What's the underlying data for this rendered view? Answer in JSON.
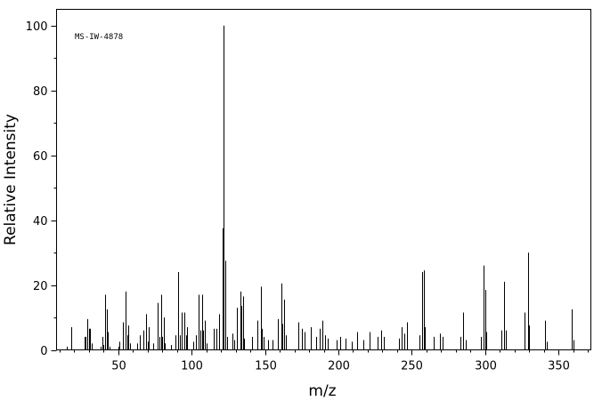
{
  "chart_data": {
    "type": "bar",
    "title": "",
    "annotation": "MS-IW-4878",
    "xlabel": "m/z",
    "ylabel": "Relative Intensity",
    "xlim": [
      8,
      372
    ],
    "ylim": [
      0,
      105
    ],
    "x_ticks": [
      50,
      100,
      150,
      200,
      250,
      300,
      350
    ],
    "y_ticks": [
      0,
      20,
      40,
      60,
      80,
      100
    ],
    "grid": false,
    "legend": "none",
    "line_color": "#000000",
    "peaks": [
      {
        "x": 15,
        "y": 1.0
      },
      {
        "x": 18,
        "y": 7.0
      },
      {
        "x": 27,
        "y": 4.0
      },
      {
        "x": 28,
        "y": 4.0
      },
      {
        "x": 29,
        "y": 9.5
      },
      {
        "x": 30,
        "y": 6.5
      },
      {
        "x": 31,
        "y": 6.5
      },
      {
        "x": 32,
        "y": 2.0
      },
      {
        "x": 38,
        "y": 1.0
      },
      {
        "x": 39,
        "y": 4.0
      },
      {
        "x": 40,
        "y": 1.5
      },
      {
        "x": 41,
        "y": 17.0
      },
      {
        "x": 42,
        "y": 12.5
      },
      {
        "x": 43,
        "y": 5.5
      },
      {
        "x": 44,
        "y": 1.0
      },
      {
        "x": 50,
        "y": 1.0
      },
      {
        "x": 51,
        "y": 2.5
      },
      {
        "x": 53,
        "y": 8.5
      },
      {
        "x": 55,
        "y": 18.0
      },
      {
        "x": 56,
        "y": 4.5
      },
      {
        "x": 57,
        "y": 7.5
      },
      {
        "x": 58,
        "y": 2.0
      },
      {
        "x": 63,
        "y": 2.0
      },
      {
        "x": 65,
        "y": 4.5
      },
      {
        "x": 67,
        "y": 6.0
      },
      {
        "x": 69,
        "y": 11.0
      },
      {
        "x": 70,
        "y": 2.5
      },
      {
        "x": 71,
        "y": 7.0
      },
      {
        "x": 74,
        "y": 2.0
      },
      {
        "x": 77,
        "y": 14.5
      },
      {
        "x": 78,
        "y": 4.0
      },
      {
        "x": 79,
        "y": 17.0
      },
      {
        "x": 80,
        "y": 4.0
      },
      {
        "x": 81,
        "y": 10.0
      },
      {
        "x": 82,
        "y": 2.0
      },
      {
        "x": 86,
        "y": 1.5
      },
      {
        "x": 89,
        "y": 4.5
      },
      {
        "x": 91,
        "y": 24.0
      },
      {
        "x": 92,
        "y": 4.5
      },
      {
        "x": 93,
        "y": 11.5
      },
      {
        "x": 95,
        "y": 11.5
      },
      {
        "x": 96,
        "y": 4.5
      },
      {
        "x": 97,
        "y": 7.0
      },
      {
        "x": 101,
        "y": 2.5
      },
      {
        "x": 103,
        "y": 4.5
      },
      {
        "x": 105,
        "y": 17.0
      },
      {
        "x": 106,
        "y": 6.0
      },
      {
        "x": 107,
        "y": 17.0
      },
      {
        "x": 108,
        "y": 6.0
      },
      {
        "x": 109,
        "y": 9.0
      },
      {
        "x": 110,
        "y": 2.0
      },
      {
        "x": 115,
        "y": 6.5
      },
      {
        "x": 117,
        "y": 6.5
      },
      {
        "x": 119,
        "y": 11.0
      },
      {
        "x": 121,
        "y": 37.5
      },
      {
        "x": 122,
        "y": 100.0
      },
      {
        "x": 123,
        "y": 27.5
      },
      {
        "x": 124,
        "y": 4.0
      },
      {
        "x": 128,
        "y": 5.0
      },
      {
        "x": 129,
        "y": 3.0
      },
      {
        "x": 131,
        "y": 13.0
      },
      {
        "x": 133,
        "y": 18.0
      },
      {
        "x": 134,
        "y": 13.5
      },
      {
        "x": 135,
        "y": 16.5
      },
      {
        "x": 136,
        "y": 3.5
      },
      {
        "x": 141,
        "y": 4.0
      },
      {
        "x": 145,
        "y": 9.0
      },
      {
        "x": 147,
        "y": 19.5
      },
      {
        "x": 148,
        "y": 6.5
      },
      {
        "x": 149,
        "y": 4.0
      },
      {
        "x": 152,
        "y": 3.0
      },
      {
        "x": 155,
        "y": 3.0
      },
      {
        "x": 159,
        "y": 9.5
      },
      {
        "x": 161,
        "y": 20.5
      },
      {
        "x": 162,
        "y": 8.0
      },
      {
        "x": 163,
        "y": 15.5
      },
      {
        "x": 164,
        "y": 4.5
      },
      {
        "x": 173,
        "y": 8.5
      },
      {
        "x": 175,
        "y": 6.5
      },
      {
        "x": 177,
        "y": 5.5
      },
      {
        "x": 181,
        "y": 7.0
      },
      {
        "x": 185,
        "y": 4.0
      },
      {
        "x": 187,
        "y": 6.5
      },
      {
        "x": 189,
        "y": 9.0
      },
      {
        "x": 191,
        "y": 4.5
      },
      {
        "x": 193,
        "y": 3.5
      },
      {
        "x": 199,
        "y": 3.0
      },
      {
        "x": 201,
        "y": 4.0
      },
      {
        "x": 205,
        "y": 3.5
      },
      {
        "x": 209,
        "y": 2.5
      },
      {
        "x": 213,
        "y": 5.5
      },
      {
        "x": 217,
        "y": 3.0
      },
      {
        "x": 221,
        "y": 5.5
      },
      {
        "x": 227,
        "y": 4.0
      },
      {
        "x": 229,
        "y": 6.0
      },
      {
        "x": 231,
        "y": 4.0
      },
      {
        "x": 241,
        "y": 3.5
      },
      {
        "x": 243,
        "y": 7.0
      },
      {
        "x": 245,
        "y": 5.0
      },
      {
        "x": 247,
        "y": 8.5
      },
      {
        "x": 255,
        "y": 4.5
      },
      {
        "x": 257,
        "y": 24.0
      },
      {
        "x": 258,
        "y": 24.5
      },
      {
        "x": 259,
        "y": 7.0
      },
      {
        "x": 265,
        "y": 4.0
      },
      {
        "x": 269,
        "y": 5.0
      },
      {
        "x": 271,
        "y": 4.0
      },
      {
        "x": 283,
        "y": 4.0
      },
      {
        "x": 285,
        "y": 11.5
      },
      {
        "x": 287,
        "y": 3.0
      },
      {
        "x": 297,
        "y": 4.0
      },
      {
        "x": 299,
        "y": 26.0
      },
      {
        "x": 300,
        "y": 18.5
      },
      {
        "x": 301,
        "y": 5.5
      },
      {
        "x": 311,
        "y": 6.0
      },
      {
        "x": 313,
        "y": 21.0
      },
      {
        "x": 314,
        "y": 6.0
      },
      {
        "x": 327,
        "y": 11.5
      },
      {
        "x": 329,
        "y": 30.0
      },
      {
        "x": 330,
        "y": 7.5
      },
      {
        "x": 341,
        "y": 9.0
      },
      {
        "x": 342,
        "y": 2.5
      },
      {
        "x": 359,
        "y": 12.5
      },
      {
        "x": 360,
        "y": 3.0
      }
    ]
  }
}
